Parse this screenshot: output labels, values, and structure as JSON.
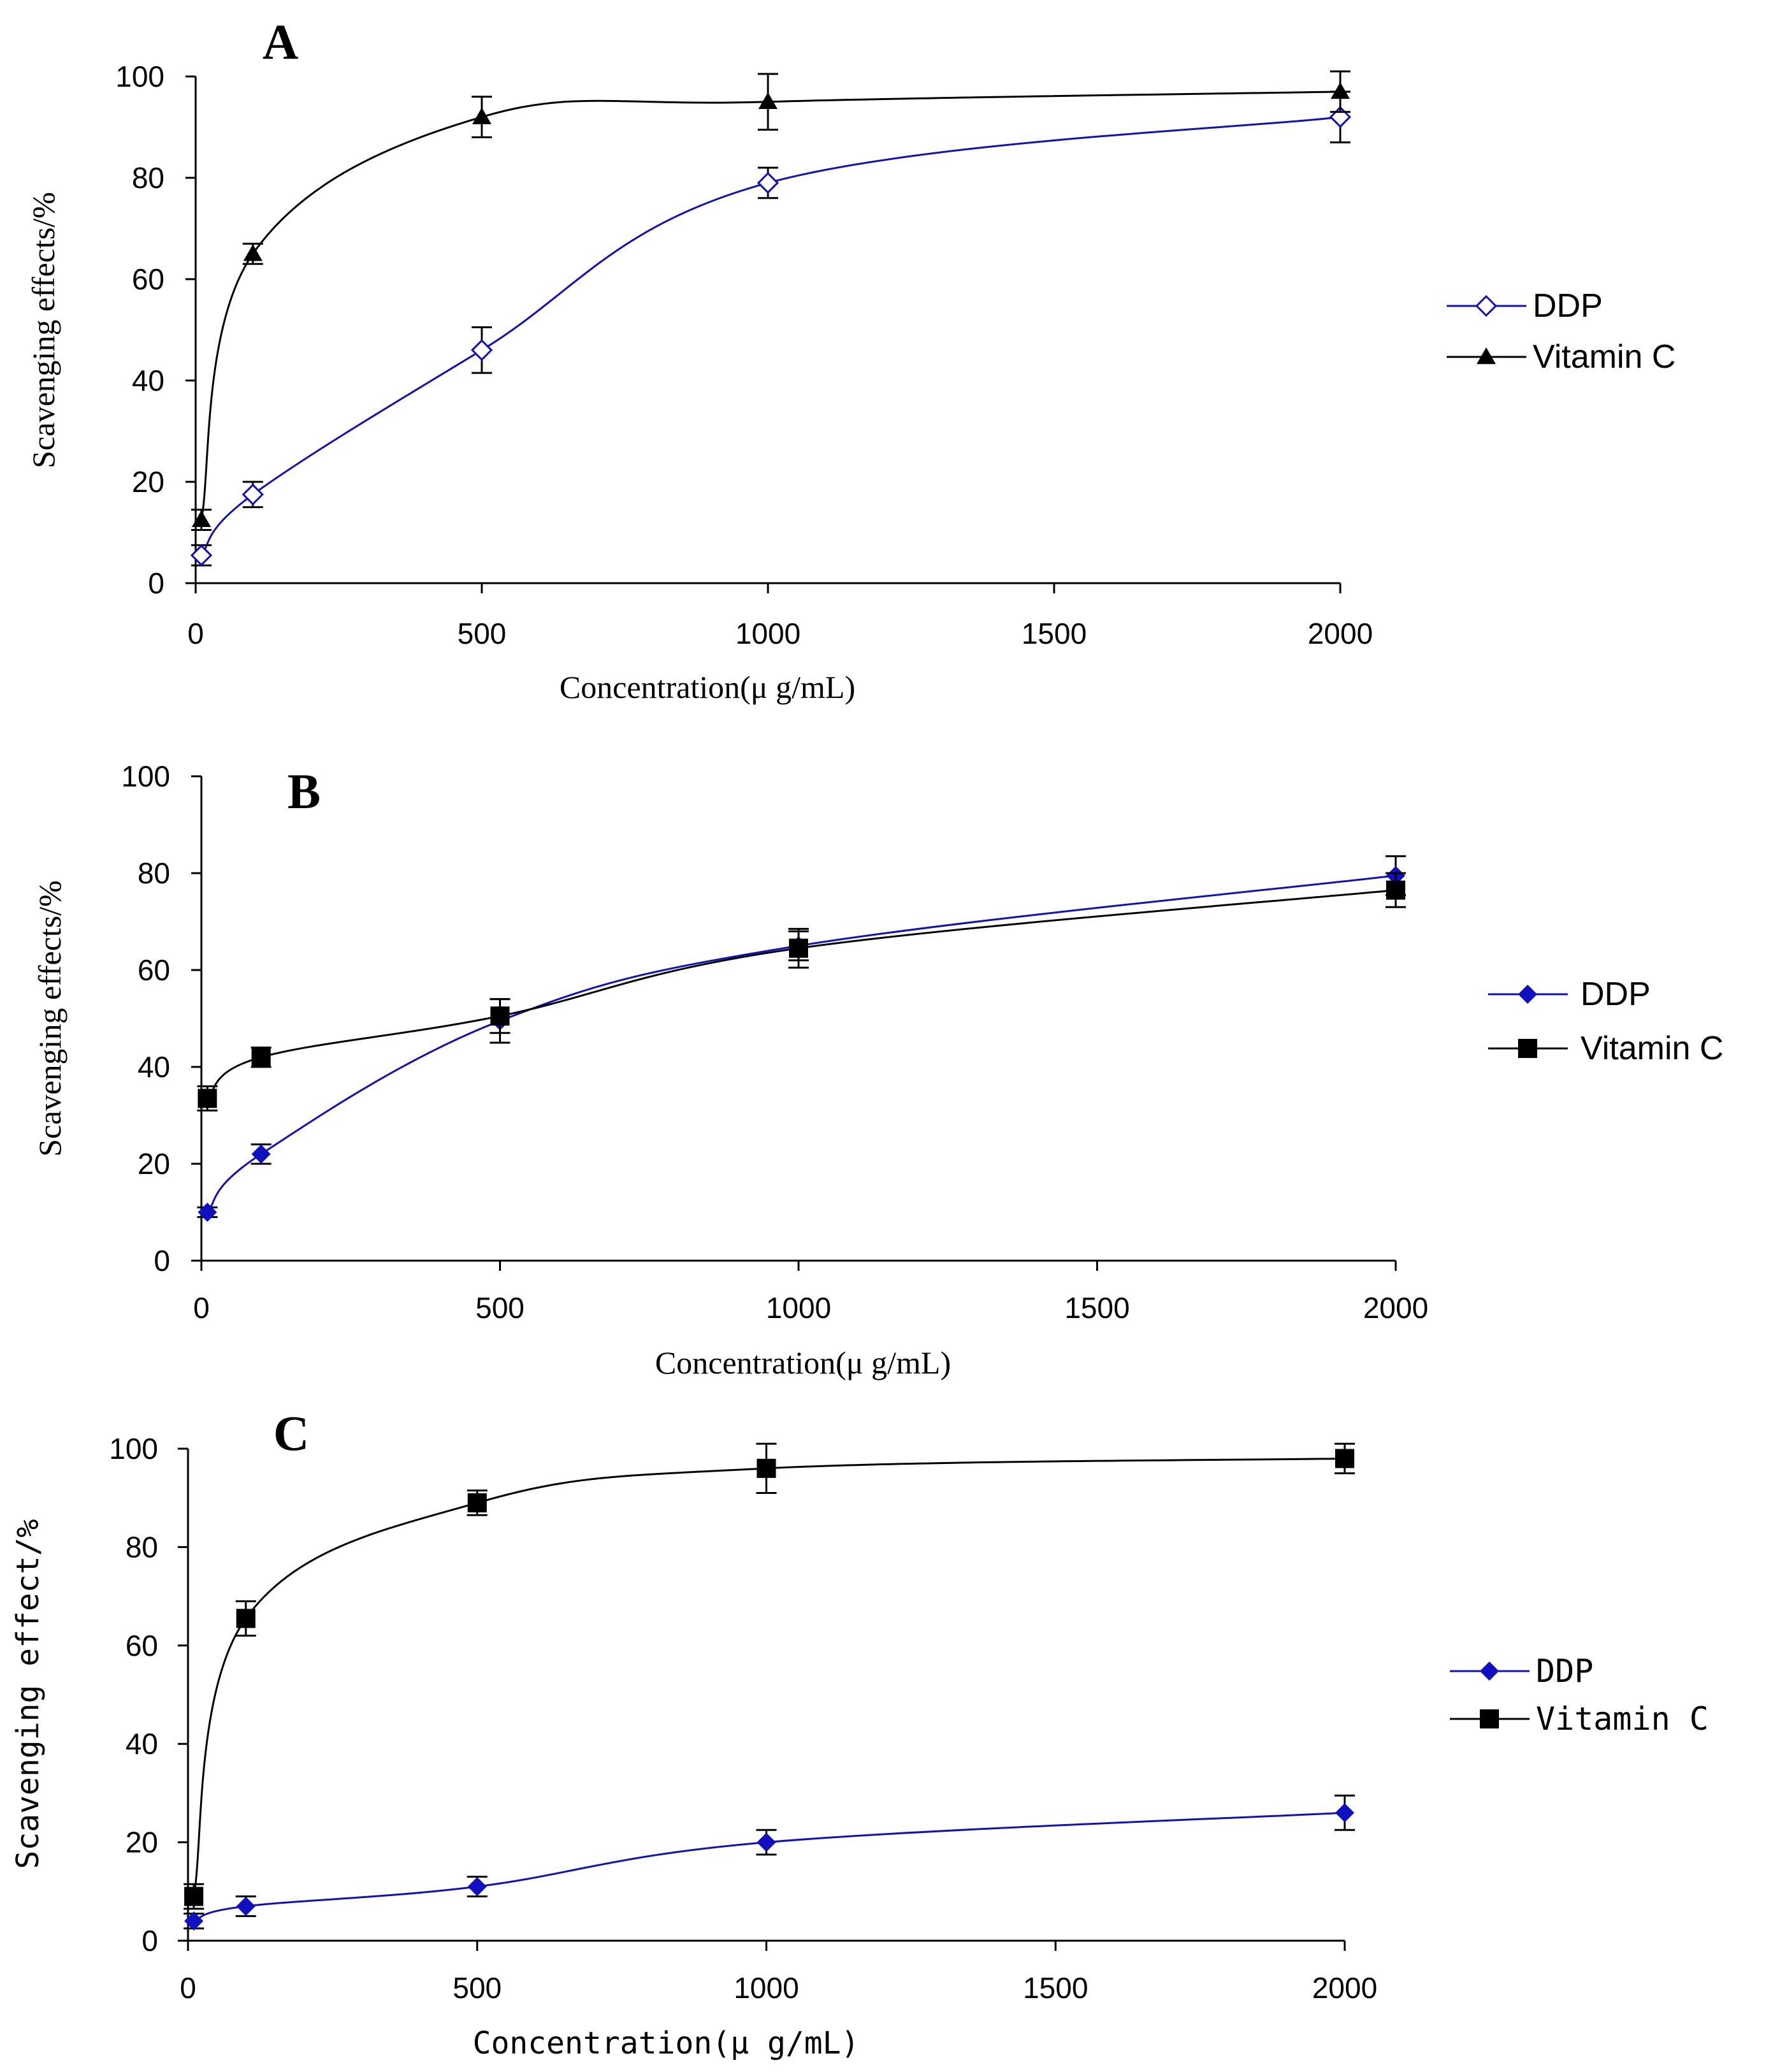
{
  "chart_data": [
    {
      "type": "line",
      "panel_label": "A",
      "xlabel": "Concentration(μ g/mL)",
      "ylabel": "Scavenging effects/%",
      "xlim": [
        0,
        2000
      ],
      "ylim": [
        0,
        100
      ],
      "xticks": [
        0,
        500,
        1000,
        1500,
        2000
      ],
      "yticks": [
        0,
        20,
        40,
        60,
        80,
        100
      ],
      "legend_position": "right",
      "mono": false,
      "series": [
        {
          "name": "DDP",
          "color": "#1010c0",
          "marker": "diamond-open",
          "x": [
            10,
            100,
            500,
            1000,
            2000
          ],
          "y": [
            5.5,
            17.5,
            46,
            79,
            92
          ],
          "err": [
            2,
            2.5,
            4.5,
            3,
            5
          ]
        },
        {
          "name": "Vitamin C",
          "color": "#000000",
          "marker": "triangle",
          "x": [
            10,
            100,
            500,
            1000,
            2000
          ],
          "y": [
            12.5,
            65,
            92,
            95,
            97
          ],
          "err": [
            2,
            2,
            4,
            5.5,
            4
          ]
        }
      ]
    },
    {
      "type": "line",
      "panel_label": "B",
      "xlabel": "Concentration(μ g/mL)",
      "ylabel": "Scavenging effects/%",
      "xlim": [
        0,
        2000
      ],
      "ylim": [
        0,
        100
      ],
      "xticks": [
        0,
        500,
        1000,
        1500,
        2000
      ],
      "yticks": [
        0,
        20,
        40,
        60,
        80,
        100
      ],
      "legend_position": "right",
      "mono": false,
      "series": [
        {
          "name": "DDP",
          "color": "#1010c0",
          "marker": "diamond",
          "x": [
            10,
            100,
            500,
            1000,
            2000
          ],
          "y": [
            10,
            22,
            49.5,
            65,
            79.5
          ],
          "err": [
            1,
            2,
            4.5,
            3,
            4
          ]
        },
        {
          "name": "Vitamin C",
          "color": "#000000",
          "marker": "square",
          "x": [
            10,
            100,
            500,
            1000,
            2000
          ],
          "y": [
            33.5,
            42,
            50.5,
            64.5,
            76.5
          ],
          "err": [
            2.5,
            2,
            3.5,
            4,
            3.5
          ]
        }
      ]
    },
    {
      "type": "line",
      "panel_label": "C",
      "xlabel": "Concentration(μ g/mL)",
      "ylabel": "Scavenging effect/%",
      "xlim": [
        0,
        2000
      ],
      "ylim": [
        0,
        100
      ],
      "xticks": [
        0,
        500,
        1000,
        1500,
        2000
      ],
      "yticks": [
        0,
        20,
        40,
        60,
        80,
        100
      ],
      "legend_position": "right",
      "mono": true,
      "series": [
        {
          "name": "DDP",
          "color": "#1010c0",
          "marker": "diamond",
          "x": [
            10,
            100,
            500,
            1000,
            2000
          ],
          "y": [
            4,
            7,
            11,
            20,
            26
          ],
          "err": [
            1.5,
            2,
            2,
            2.5,
            3.5
          ]
        },
        {
          "name": "Vitamin C",
          "color": "#000000",
          "marker": "square",
          "x": [
            10,
            100,
            500,
            1000,
            2000
          ],
          "y": [
            9,
            65.5,
            89,
            96,
            98
          ],
          "err": [
            2.5,
            3.5,
            2.5,
            5,
            3
          ]
        }
      ]
    }
  ]
}
